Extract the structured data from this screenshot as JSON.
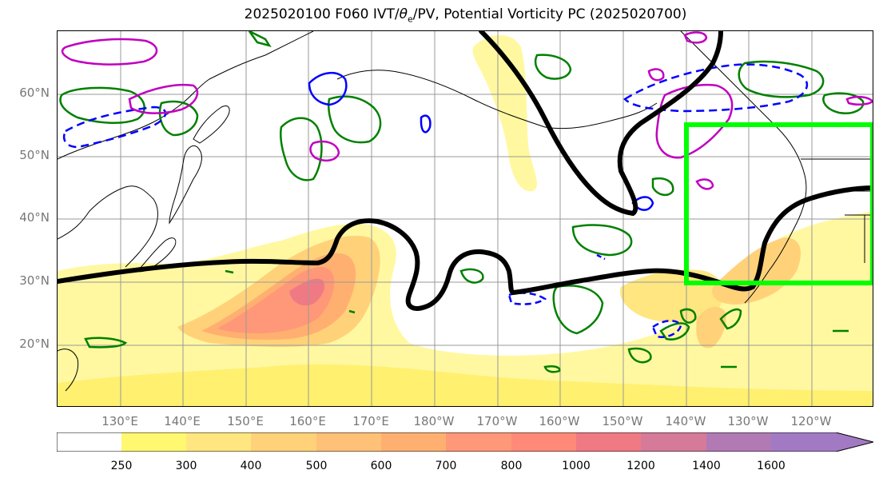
{
  "title": "2025020100 F060 IVT/θe/PV, Potential Vorticity PC (2025020700)",
  "title_parts": {
    "prefix": "2025020100 F060 IVT/",
    "theta": "θ",
    "sub": "e",
    "suffix": "/PV, Potential Vorticity PC (2025020700)"
  },
  "lat_labels": [
    "60°N",
    "50°N",
    "40°N",
    "30°N",
    "20°N"
  ],
  "lon_labels": [
    "130°E",
    "140°E",
    "150°E",
    "160°E",
    "170°E",
    "180°W",
    "170°W",
    "160°W",
    "150°W",
    "140°W",
    "130°W",
    "120°W"
  ],
  "colorbar": {
    "ticks": [
      "250",
      "300",
      "400",
      "500",
      "600",
      "700",
      "800",
      "1000",
      "1200",
      "1400",
      "1600"
    ],
    "colors": [
      "#ffffff",
      "#fff870",
      "#ffe680",
      "#ffd27a",
      "#ffc078",
      "#ffb070",
      "#ff9878",
      "#ff8a78",
      "#f07a84",
      "#d67a9a",
      "#b27ab4",
      "#a27ac4"
    ]
  },
  "colors": {
    "jet_line": "#000000",
    "positive_pv": "#008000",
    "negative_pv": "#0000ff",
    "magenta_pv": "#c000c0",
    "highlight_box": "#00ff00"
  }
}
